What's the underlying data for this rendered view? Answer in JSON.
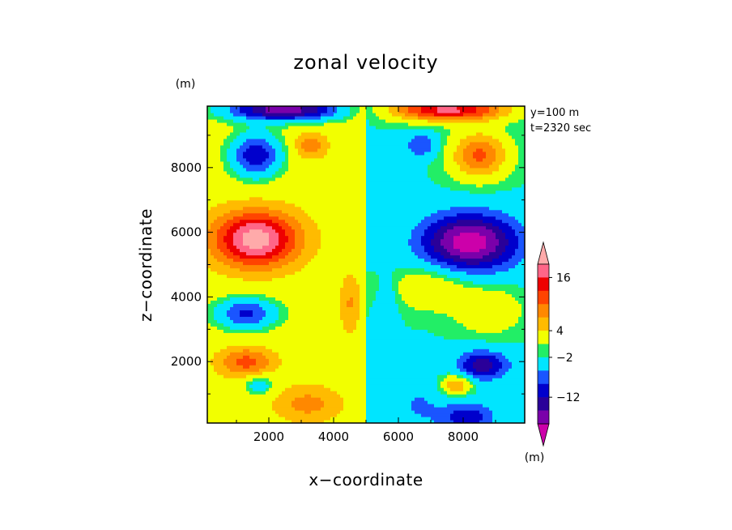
{
  "chart_data": {
    "type": "heatmap",
    "title": "zonal velocity",
    "xlabel": "x−coordinate",
    "ylabel": "z−coordinate",
    "y_unit": "(m)",
    "x_unit": "(m)",
    "annotations": [
      "y=100 m",
      "t=2320 sec"
    ],
    "xlim": [
      100,
      9900
    ],
    "ylim": [
      100,
      9900
    ],
    "x_ticks": [
      {
        "value": 2000,
        "label": "2000"
      },
      {
        "value": 4000,
        "label": "4000"
      },
      {
        "value": 6000,
        "label": "6000"
      },
      {
        "value": 8000,
        "label": "8000"
      }
    ],
    "y_ticks": [
      {
        "value": 2000,
        "label": "2000"
      },
      {
        "value": 4000,
        "label": "4000"
      },
      {
        "value": 6000,
        "label": "6000"
      },
      {
        "value": 8000,
        "label": "8000"
      }
    ],
    "colorbar": {
      "levels": [
        -18,
        -15,
        -12,
        -9,
        -6,
        -2,
        0,
        4,
        7,
        10,
        13,
        16,
        19
      ],
      "colors": [
        "#cc00aa",
        "#7a00aa",
        "#2a0099",
        "#0000cc",
        "#1a55ff",
        "#00e5ff",
        "#22ee66",
        "#f2ff00",
        "#ffbb00",
        "#ff8800",
        "#ff4400",
        "#ee0000",
        "#ff6688",
        "#ffaaaa"
      ],
      "labels": [
        {
          "value": 16,
          "label": "16"
        },
        {
          "value": 4,
          "label": "4"
        },
        {
          "value": -2,
          "label": "−2"
        },
        {
          "value": -12,
          "label": "−12"
        }
      ],
      "extend": "both",
      "legend_position": "right"
    },
    "features": [
      {
        "x": 1600,
        "z": 5800,
        "value": 19,
        "sx": 1300,
        "sz": 850
      },
      {
        "x": 8200,
        "z": 5700,
        "value": -18,
        "sx": 1500,
        "sz": 900
      },
      {
        "x": 1300,
        "z": 3500,
        "value": -12,
        "sx": 1000,
        "sz": 500
      },
      {
        "x": 8800,
        "z": 3600,
        "value": 6,
        "sx": 1000,
        "sz": 700
      },
      {
        "x": 1300,
        "z": 2000,
        "value": 9,
        "sx": 850,
        "sz": 450
      },
      {
        "x": 8600,
        "z": 1900,
        "value": -12,
        "sx": 800,
        "sz": 450
      },
      {
        "x": 1600,
        "z": 8400,
        "value": -14,
        "sx": 800,
        "sz": 700
      },
      {
        "x": 8500,
        "z": 8400,
        "value": 13,
        "sx": 900,
        "sz": 750
      },
      {
        "x": 2500,
        "z": 9800,
        "value": -19,
        "sx": 1900,
        "sz": 350
      },
      {
        "x": 7500,
        "z": 9800,
        "value": 19,
        "sx": 1900,
        "sz": 350
      },
      {
        "x": 3300,
        "z": 8700,
        "value": 7,
        "sx": 500,
        "sz": 380
      },
      {
        "x": 6700,
        "z": 8700,
        "value": -7,
        "sx": 500,
        "sz": 380
      },
      {
        "x": 1700,
        "z": 1300,
        "value": -7,
        "sx": 450,
        "sz": 300
      },
      {
        "x": 7800,
        "z": 1300,
        "value": 10,
        "sx": 450,
        "sz": 300
      },
      {
        "x": 6600,
        "z": 700,
        "value": -4,
        "sx": 700,
        "sz": 700
      },
      {
        "x": 8100,
        "z": 300,
        "value": -9,
        "sx": 900,
        "sz": 450
      },
      {
        "x": 3200,
        "z": 700,
        "value": 6,
        "sx": 1000,
        "sz": 550
      },
      {
        "x": 4500,
        "z": 3800,
        "value": 5,
        "sx": 300,
        "sz": 900
      },
      {
        "x": 5700,
        "z": 3800,
        "value": -3,
        "sx": 300,
        "sz": 900
      },
      {
        "x": 7000,
        "z": 4300,
        "value": 6,
        "sx": 1200,
        "sz": 700
      }
    ]
  }
}
